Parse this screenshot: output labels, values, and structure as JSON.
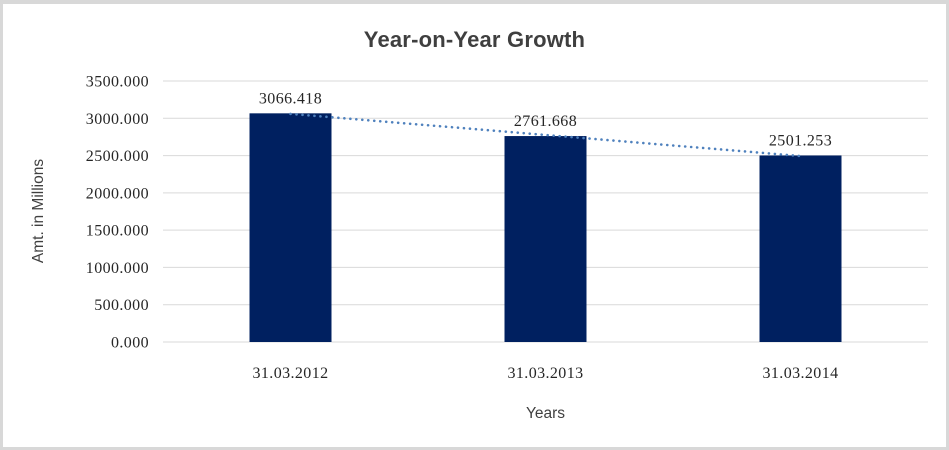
{
  "chart_data": {
    "type": "bar",
    "title": "Year-on-Year Growth",
    "xlabel": "Years",
    "ylabel": "Amt. in Millions",
    "categories": [
      "31.03.2012",
      "31.03.2013",
      "31.03.2014"
    ],
    "values": [
      3066.418,
      2761.668,
      2501.253
    ],
    "data_labels": [
      "3066.418",
      "2761.668",
      "2501.253"
    ],
    "y_ticks": [
      "3500.000",
      "3000.000",
      "2500.000",
      "2000.000",
      "1500.000",
      "1000.000",
      "500.000",
      "0.000"
    ],
    "ylim": [
      0,
      3500
    ],
    "grid": true,
    "legend": "none",
    "trendline": {
      "type": "linear",
      "style": "dotted"
    },
    "colors": {
      "bar": "#002060",
      "trendline": "#4f81bd",
      "gridline": "#d9d9d9",
      "tick_text": "#262626",
      "title_text": "#3f3f3f",
      "frame_border": "#d8d8d8"
    }
  }
}
